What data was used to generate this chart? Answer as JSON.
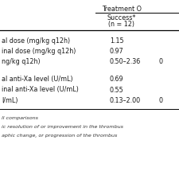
{
  "title": "Treatment O",
  "col_header1": "Success*",
  "col_header1b": "(n = 12)",
  "rows_group1": [
    {
      "label": "al dose (mg/kg q12h)",
      "val1": "1.15",
      "val2": ""
    },
    {
      "label": "inal dose (mg/kg q12h)",
      "val1": "0.97",
      "val2": ""
    },
    {
      "label": "ng/kg q12h)",
      "val1": "0.50–2.36",
      "val2": "0"
    }
  ],
  "rows_group2": [
    {
      "label": "al anti-Xa level (U/mL)",
      "val1": "0.69",
      "val2": ""
    },
    {
      "label": "inal anti-Xa level (U/mL)",
      "val1": "0.55",
      "val2": ""
    },
    {
      "label": "l/mL)",
      "val1": "0.13–2.00",
      "val2": "0"
    }
  ],
  "footnotes": [
    "ll comparisons",
    "ic resolution of or improvement in the thrombus",
    "aphic change, or progression of the thrombus"
  ],
  "bg_color": "#ffffff",
  "line_color": "#000000",
  "text_color": "#1a1a1a",
  "footnote_color": "#333333",
  "fs_main": 5.8,
  "fs_fn": 4.6
}
